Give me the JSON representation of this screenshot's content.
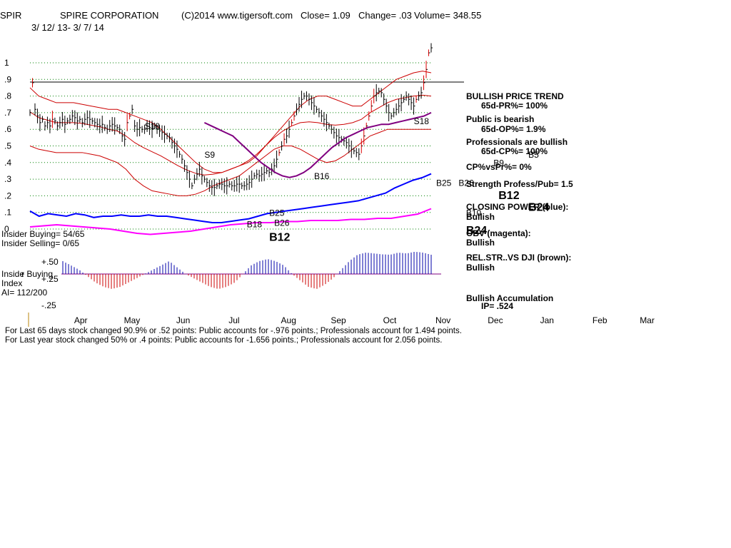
{
  "header": {
    "symbol": "SPIR",
    "company": "SPIRE CORPORATION",
    "copyright": "(C)2014 www.tigersoft.com",
    "close_label": "Close=  1.09",
    "change_label": "Change= .03",
    "volume_label": "Volume= 348.55",
    "date_range": "3/ 12/ 13-  3/ 7/ 14"
  },
  "insider": {
    "buying": "Insider Buying= 54/65",
    "selling": "Insider Selling= 0/65",
    "label1": "Inside",
    "label2": "r Buying",
    "index": "Index",
    "ai": "AI= 112/200"
  },
  "side_panel": {
    "trend_title": "BULLISH PRICE TREND",
    "trend_value": "65d-PR%= 100%",
    "public_title": "Public is bearish",
    "public_value": "65d-OP%= 1.9%",
    "pro_title": "Professionals are bullish",
    "pro_value": "65d-CP%= 100%",
    "cp_vs_pr": "CP%vsPr%=  0%",
    "strength": "Strength Profess/Pub= 1.5",
    "cp_title": "CLOSING POWER (blue):",
    "cp_value": "Bullish",
    "obv_title": "OBV (magenta):",
    "obv_value": "Bullish",
    "rs_title": "REL.STR..VS DJI (brown):",
    "rs_value": "Bullish",
    "accum_title": "Bullish Accumulation",
    "accum_value": "IP=  .524"
  },
  "footer": {
    "line1": "For Last 65 days stock changed  90.9% or  .52 points:  Public accounts for -.976 points.;  Professionals account for  1.494 points.",
    "line2": "For Last year stock changed  50% or  .4 points:  Public accounts for -1.656 points.;  Professionals account for  2.056 points."
  },
  "colors": {
    "price_bar": "#000000",
    "price_bar_up": "#dd0000",
    "band": "#cc0000",
    "ma": "#800080",
    "closing_power": "#0000ff",
    "obv": "#ff00ff",
    "accum_pos": "#0000aa",
    "accum_neg": "#cc0000",
    "signal_buy": "#0000aa",
    "signal_red": "#cc0000"
  },
  "chart_data": {
    "type": "line",
    "y_ticks": [
      "1",
      ".9",
      ".8",
      ".7",
      ".6",
      ".5",
      ".4",
      ".3",
      ".2",
      ".1",
      "0"
    ],
    "y_tick_values": [
      1,
      0.9,
      0.8,
      0.7,
      0.6,
      0.5,
      0.4,
      0.3,
      0.2,
      0.1,
      0
    ],
    "ylim": [
      0,
      1.2
    ],
    "months": [
      "Apr",
      "May",
      "Jun",
      "Jul",
      "Aug",
      "Sep",
      "Oct",
      "Nov",
      "Dec",
      "Jan",
      "Feb",
      "Mar"
    ],
    "month_index": [
      20,
      40,
      61,
      82,
      103,
      123,
      144,
      165,
      186,
      207,
      228,
      247
    ],
    "resistance_level": 0.88,
    "price_close": [
      0.7,
      0.88,
      0.72,
      0.68,
      0.64,
      0.66,
      0.62,
      0.64,
      0.62,
      0.66,
      0.65,
      0.62,
      0.64,
      0.66,
      0.63,
      0.65,
      0.66,
      0.68,
      0.67,
      0.65,
      0.66,
      0.64,
      0.66,
      0.67,
      0.66,
      0.65,
      0.64,
      0.63,
      0.62,
      0.63,
      0.61,
      0.6,
      0.62,
      0.63,
      0.62,
      0.61,
      0.6,
      0.56,
      0.54,
      0.64,
      0.68,
      0.72,
      0.62,
      0.6,
      0.61,
      0.6,
      0.6,
      0.62,
      0.61,
      0.6,
      0.62,
      0.6,
      0.59,
      0.58,
      0.57,
      0.56,
      0.55,
      0.52,
      0.5,
      0.48,
      0.45,
      0.42,
      0.38,
      0.34,
      0.3,
      0.26,
      0.3,
      0.33,
      0.36,
      0.32,
      0.3,
      0.28,
      0.26,
      0.25,
      0.25,
      0.26,
      0.27,
      0.27,
      0.26,
      0.26,
      0.27,
      0.26,
      0.26,
      0.27,
      0.27,
      0.26,
      0.26,
      0.27,
      0.28,
      0.3,
      0.32,
      0.33,
      0.32,
      0.33,
      0.34,
      0.35,
      0.34,
      0.36,
      0.38,
      0.42,
      0.46,
      0.5,
      0.54,
      0.56,
      0.6,
      0.64,
      0.68,
      0.72,
      0.75,
      0.78,
      0.8,
      0.8,
      0.78,
      0.76,
      0.74,
      0.72,
      0.7,
      0.68,
      0.66,
      0.64,
      0.62,
      0.6,
      0.58,
      0.56,
      0.55,
      0.54,
      0.53,
      0.52,
      0.5,
      0.48,
      0.47,
      0.46,
      0.45,
      0.5,
      0.56,
      0.62,
      0.68,
      0.74,
      0.8,
      0.82,
      0.83,
      0.82,
      0.78,
      0.74,
      0.7,
      0.68,
      0.7,
      0.72,
      0.74,
      0.76,
      0.78,
      0.8,
      0.78,
      0.76,
      0.74,
      0.78,
      0.8,
      0.82,
      0.88,
      0.96,
      1.06,
      1.09
    ],
    "band_upper": [
      0.85,
      0.8,
      0.78,
      0.76,
      0.76,
      0.76,
      0.75,
      0.74,
      0.73,
      0.72,
      0.72,
      0.7,
      0.68,
      0.66,
      0.64,
      0.6,
      0.55,
      0.5,
      0.45,
      0.4,
      0.36,
      0.34,
      0.34,
      0.36,
      0.38,
      0.4,
      0.44,
      0.5,
      0.56,
      0.62,
      0.68,
      0.74,
      0.78,
      0.8,
      0.8,
      0.78,
      0.76,
      0.74,
      0.74,
      0.78,
      0.82,
      0.86,
      0.9,
      0.92,
      0.94,
      0.95,
      0.94
    ],
    "band_lower": [
      0.5,
      0.48,
      0.47,
      0.46,
      0.46,
      0.46,
      0.46,
      0.45,
      0.44,
      0.42,
      0.4,
      0.36,
      0.3,
      0.26,
      0.23,
      0.22,
      0.21,
      0.2,
      0.2,
      0.21,
      0.23,
      0.26,
      0.28,
      0.3,
      0.32,
      0.36,
      0.4,
      0.44,
      0.48,
      0.5,
      0.5,
      0.48,
      0.45,
      0.42,
      0.4,
      0.41,
      0.44,
      0.48,
      0.52,
      0.56,
      0.58,
      0.6,
      0.6,
      0.6,
      0.6,
      0.6,
      0.6
    ],
    "ma_line": [
      0.64,
      0.62,
      0.6,
      0.58,
      0.56,
      0.52,
      0.48,
      0.44,
      0.4,
      0.37,
      0.34,
      0.32,
      0.31,
      0.32,
      0.34,
      0.37,
      0.41,
      0.45,
      0.49,
      0.52,
      0.55,
      0.57,
      0.59,
      0.61,
      0.62,
      0.63,
      0.63,
      0.64,
      0.65,
      0.66,
      0.67,
      0.68,
      0.7
    ],
    "ma_start_index": 70,
    "closing_power": [
      0.14,
      0.1,
      0.12,
      0.11,
      0.1,
      0.12,
      0.11,
      0.09,
      0.1,
      0.1,
      0.11,
      0.1,
      0.1,
      0.11,
      0.1,
      0.1,
      0.09,
      0.08,
      0.07,
      0.06,
      0.05,
      0.05,
      0.06,
      0.07,
      0.08,
      0.1,
      0.12,
      0.13,
      0.14,
      0.15,
      0.16,
      0.17,
      0.18,
      0.19,
      0.2,
      0.21,
      0.22,
      0.24,
      0.26,
      0.28,
      0.32,
      0.35,
      0.38,
      0.4,
      0.43
    ],
    "obv": [
      0.02,
      0.03,
      0.04,
      0.03,
      0.02,
      0.01,
      0.0,
      -0.02,
      -0.04,
      -0.05,
      -0.04,
      -0.03,
      -0.02,
      0.0,
      0.02,
      0.04,
      0.05,
      0.06,
      0.06,
      0.07,
      0.07,
      0.08,
      0.08,
      0.08,
      0.09,
      0.09,
      0.1,
      0.1,
      0.12,
      0.14,
      0.19
    ],
    "accum_index": [
      0.3,
      0.2,
      0.1,
      -0.05,
      -0.2,
      -0.3,
      -0.35,
      -0.3,
      -0.2,
      -0.1,
      0.0,
      0.1,
      0.2,
      0.3,
      0.15,
      0.0,
      -0.1,
      -0.2,
      -0.3,
      -0.35,
      -0.3,
      -0.2,
      0.0,
      0.2,
      0.3,
      0.35,
      0.3,
      0.2,
      0.0,
      -0.15,
      -0.3,
      -0.35,
      -0.25,
      -0.1,
      0.1,
      0.3,
      0.45,
      0.5,
      0.48,
      0.46,
      0.45,
      0.5,
      0.48,
      0.52,
      0.5,
      0.45
    ],
    "accum_ticks": [
      "+.50",
      "+.25",
      "-.25"
    ],
    "signals": [
      {
        "label": "S18",
        "x": 46,
        "y": 0.6,
        "color": "#000000"
      },
      {
        "label": "S9",
        "x": 70,
        "y": 0.43,
        "color": "#000000"
      },
      {
        "label": "B16",
        "x": 114,
        "y": 0.3,
        "color": "#000000"
      },
      {
        "label": "S18",
        "x": 154,
        "y": 0.63,
        "color": "#000000"
      },
      {
        "label": "B25",
        "x": 163,
        "y": 0.26,
        "color": "#000000"
      },
      {
        "label": "B26",
        "x": 172,
        "y": 0.26,
        "color": "#000000"
      },
      {
        "label": "B9",
        "x": 186,
        "y": 0.38,
        "color": "#000000"
      },
      {
        "label": "B5",
        "x": 200,
        "y": 0.43,
        "color": "#000000"
      },
      {
        "label": "B12",
        "x": 188,
        "y": 0.18,
        "color": "#000000"
      },
      {
        "label": "B24",
        "x": 200,
        "y": 0.11,
        "color": "#000000"
      },
      {
        "label": "B18",
        "x": 87,
        "y": 0.01,
        "color": "#000000"
      },
      {
        "label": "B25",
        "x": 96,
        "y": 0.08,
        "color": "#000000"
      },
      {
        "label": "B26",
        "x": 98,
        "y": 0.02,
        "color": "#000000"
      },
      {
        "label": "B12",
        "x": 96,
        "y": -0.07,
        "color": "#000000"
      },
      {
        "label": "B10",
        "x": 175,
        "y": 0.08,
        "color": "#000000"
      },
      {
        "label": "B24",
        "x": 175,
        "y": -0.03,
        "color": "#000000"
      }
    ]
  }
}
